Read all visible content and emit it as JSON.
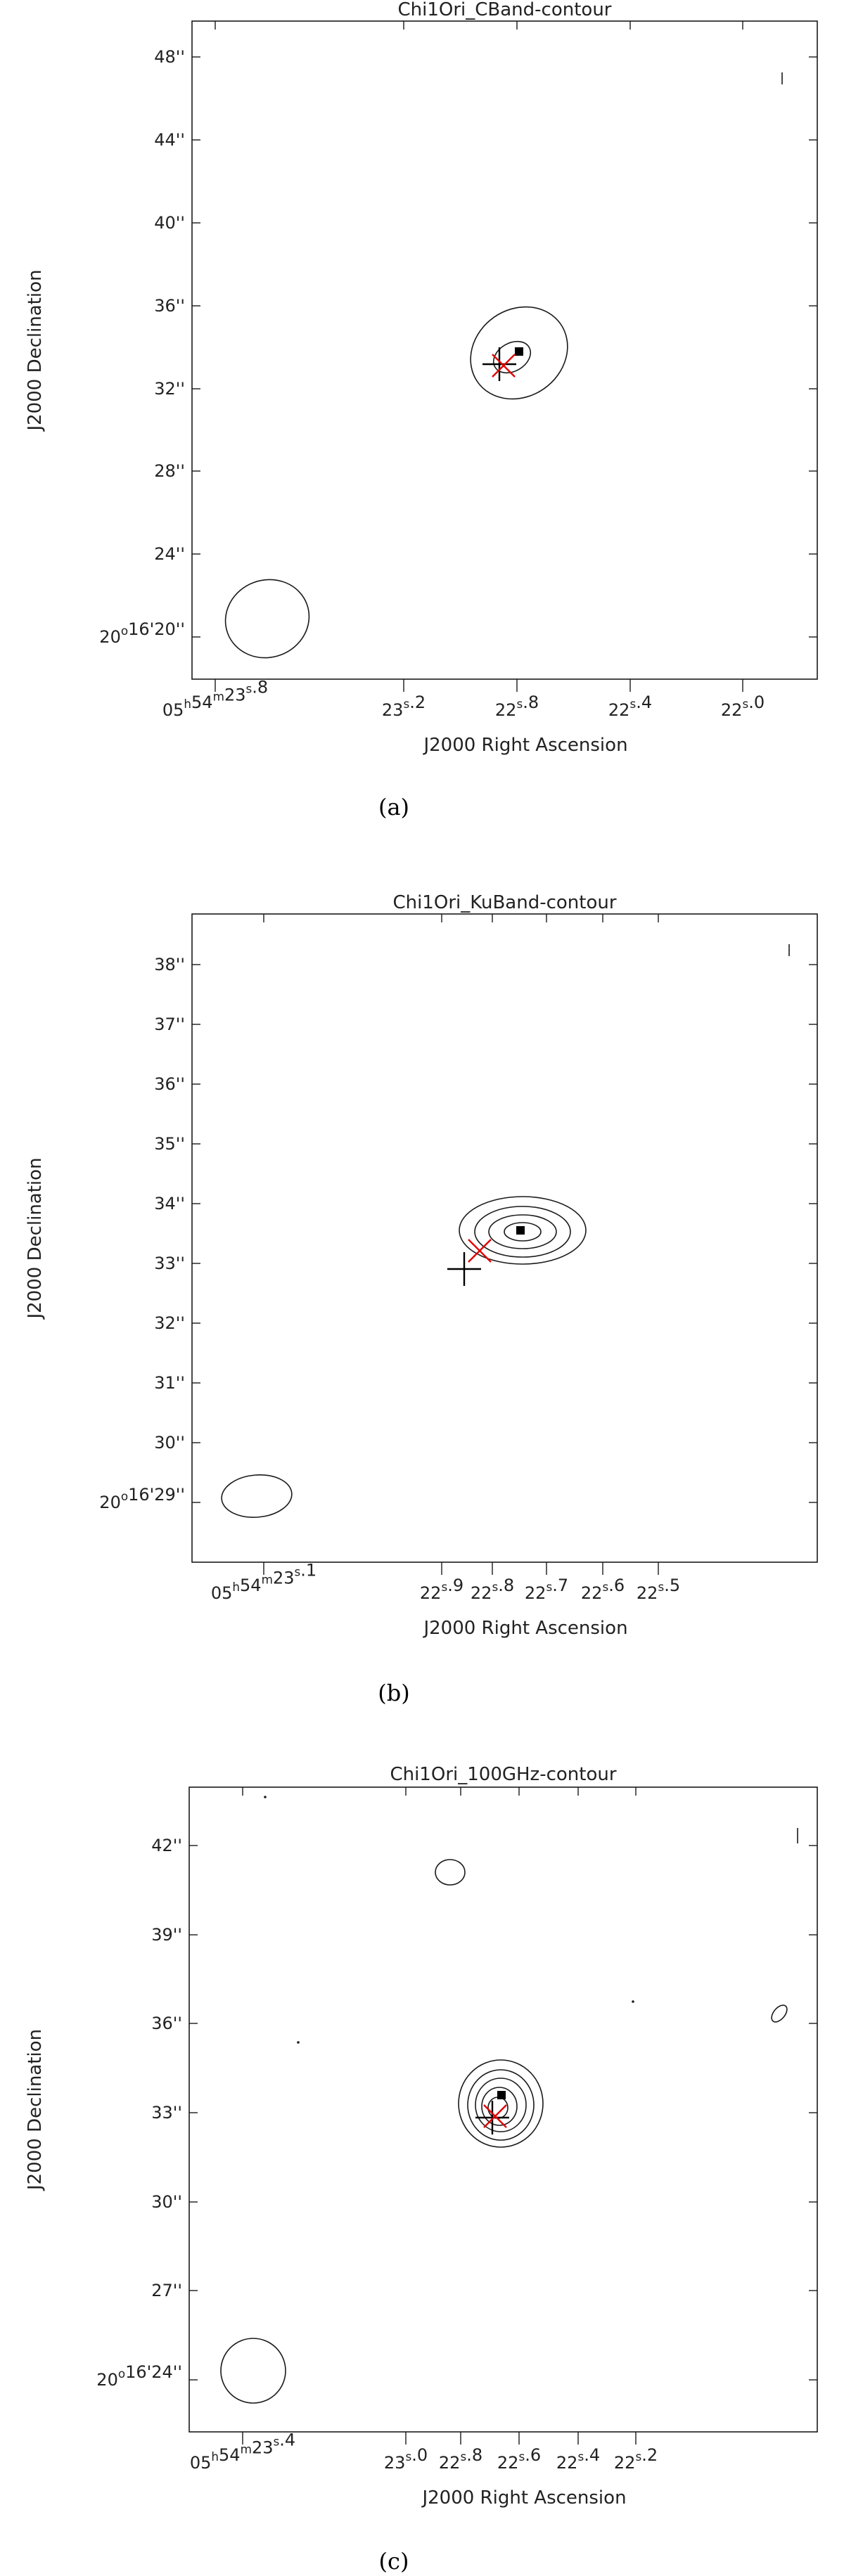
{
  "colors": {
    "axis": "#1a1a1a",
    "contour": "#1a1a1a",
    "cross_red": "#e00000",
    "cross_black": "#000000",
    "background": "#ffffff"
  },
  "chart_data": [
    {
      "type": "contour",
      "title": "Chi1Ori_CBand-contour",
      "xlabel": "J2000 Right Ascension",
      "ylabel": "J2000 Declination",
      "caption": "(a)",
      "x_ticks": [
        "05h54m23s.8",
        "23s.2",
        "22s.8",
        "22s.4",
        "22s.0"
      ],
      "y_ticks": [
        "20°16'20''",
        "24''",
        "28''",
        "32''",
        "36''",
        "40''",
        "44''",
        "48''"
      ],
      "ylim_arcsec": [
        19,
        50
      ],
      "peak_marker": "filled-square",
      "contour_levels": 2,
      "beam_ellipse": true,
      "crosses": [
        "black",
        "red"
      ]
    },
    {
      "type": "contour",
      "title": "Chi1Ori_KuBand-contour",
      "xlabel": "J2000 Right Ascension",
      "ylabel": "J2000 Declination",
      "caption": "(b)",
      "x_ticks": [
        "05h54m23s.1",
        "22s.9",
        "22s.8",
        "22s.7",
        "22s.6",
        "22s.5"
      ],
      "y_ticks": [
        "20°16'29''",
        "30''",
        "31''",
        "32''",
        "33''",
        "34''",
        "35''",
        "36''",
        "37''",
        "38''"
      ],
      "ylim_arcsec": [
        28.2,
        39
      ],
      "peak_marker": "filled-square",
      "contour_levels": 4,
      "beam_ellipse": true,
      "crosses": [
        "black",
        "red"
      ]
    },
    {
      "type": "contour",
      "title": "Chi1Ori_100GHz-contour",
      "xlabel": "J2000 Right Ascension",
      "ylabel": "J2000 Declination",
      "caption": "(c)",
      "x_ticks": [
        "05h54m23s.4",
        "23s.0",
        "22s.8",
        "22s.6",
        "22s.4",
        "22s.2"
      ],
      "y_ticks": [
        "20°16'24''",
        "27''",
        "30''",
        "33''",
        "36''",
        "39''",
        "42''"
      ],
      "ylim_arcsec": [
        22,
        44
      ],
      "peak_marker": "filled-square",
      "contour_levels": 6,
      "beam_ellipse": true,
      "crosses": [
        "black",
        "red"
      ]
    }
  ]
}
